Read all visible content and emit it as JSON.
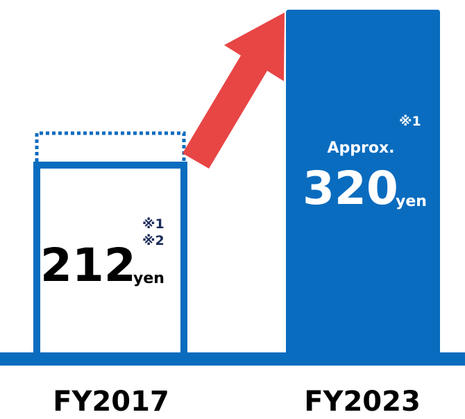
{
  "bars": [
    {
      "label": "FY2017",
      "value": "212",
      "unit": "yen",
      "notes": [
        "※1",
        "※2"
      ]
    },
    {
      "label": "FY2023",
      "prefix": "Approx.",
      "value": "320",
      "unit": "yen",
      "notes": [
        "※1"
      ]
    }
  ]
}
